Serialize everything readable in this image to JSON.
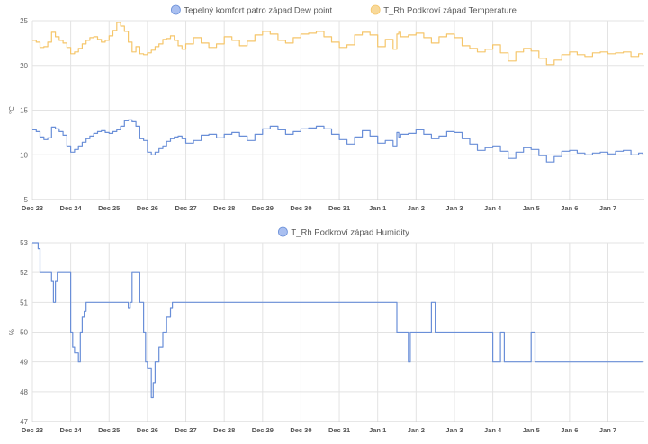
{
  "chart_data": [
    {
      "type": "line",
      "step": true,
      "title": "",
      "xlabel": "",
      "ylabel": "°C",
      "ylim": [
        5,
        25
      ],
      "yticks": [
        "5",
        "10",
        "15",
        "20",
        "25"
      ],
      "xticks": [
        "Dec 23",
        "Dec 24",
        "Dec 25",
        "Dec 26",
        "Dec 27",
        "Dec 28",
        "Dec 29",
        "Dec 30",
        "Dec 31",
        "Jan 1",
        "Jan 2",
        "Jan 3",
        "Jan 4",
        "Jan 5",
        "Jan 6",
        "Jan 7"
      ],
      "grid": true,
      "legend_position": "top-center",
      "series": [
        {
          "name": "Tepelný komfort patro západ Dew point",
          "color": "#6a8fd8",
          "legend_color": "#a9bff0",
          "x": [
            0,
            0.1,
            0.2,
            0.3,
            0.4,
            0.5,
            0.6,
            0.7,
            0.8,
            0.9,
            1.0,
            1.1,
            1.2,
            1.3,
            1.4,
            1.5,
            1.6,
            1.7,
            1.8,
            1.9,
            2.0,
            2.1,
            2.2,
            2.3,
            2.4,
            2.5,
            2.6,
            2.7,
            2.8,
            2.9,
            3.0,
            3.1,
            3.2,
            3.3,
            3.4,
            3.5,
            3.6,
            3.7,
            3.8,
            3.9,
            4.0,
            4.2,
            4.4,
            4.6,
            4.8,
            5.0,
            5.2,
            5.4,
            5.6,
            5.8,
            6.0,
            6.2,
            6.4,
            6.6,
            6.8,
            7.0,
            7.2,
            7.4,
            7.6,
            7.8,
            8.0,
            8.2,
            8.4,
            8.6,
            8.8,
            9.0,
            9.2,
            9.4,
            9.5,
            9.55,
            9.6,
            9.8,
            10.0,
            10.2,
            10.4,
            10.6,
            10.8,
            11.0,
            11.2,
            11.4,
            11.6,
            11.8,
            12.0,
            12.2,
            12.4,
            12.6,
            12.8,
            13.0,
            13.2,
            13.4,
            13.6,
            13.8,
            14.0,
            14.2,
            14.4,
            14.6,
            14.8,
            15.0,
            15.2,
            15.4,
            15.6,
            15.8,
            15.9
          ],
          "y": [
            12.8,
            12.6,
            12.0,
            11.7,
            11.9,
            13.1,
            12.9,
            12.6,
            12.2,
            11.0,
            10.3,
            10.6,
            11.0,
            11.4,
            11.8,
            12.1,
            12.4,
            12.6,
            12.7,
            12.5,
            12.4,
            12.6,
            12.8,
            13.2,
            13.8,
            13.9,
            13.7,
            13.2,
            11.8,
            11.6,
            10.3,
            10.0,
            10.3,
            10.7,
            11.0,
            11.5,
            11.8,
            12.0,
            12.1,
            11.8,
            11.3,
            11.6,
            12.2,
            12.3,
            11.9,
            12.3,
            12.5,
            12.1,
            11.6,
            12.3,
            12.9,
            13.2,
            12.8,
            12.3,
            12.6,
            12.9,
            13.0,
            13.2,
            12.9,
            12.3,
            11.7,
            11.2,
            12.0,
            12.7,
            12.1,
            11.3,
            11.6,
            11.0,
            12.5,
            12.0,
            12.3,
            12.4,
            12.8,
            12.3,
            11.8,
            12.1,
            12.6,
            12.5,
            11.8,
            11.2,
            10.5,
            10.8,
            11.0,
            10.4,
            9.6,
            10.3,
            10.8,
            10.6,
            9.9,
            9.2,
            9.8,
            10.4,
            10.5,
            10.2,
            10.0,
            10.2,
            10.3,
            10.1,
            10.4,
            10.5,
            10.0,
            10.2,
            10.1
          ]
        },
        {
          "name": "T_Rh Podkroví západ Temperature",
          "color": "#f5c66b",
          "legend_color": "#f8d99a",
          "x": [
            0,
            0.1,
            0.2,
            0.3,
            0.4,
            0.5,
            0.6,
            0.7,
            0.8,
            0.9,
            1.0,
            1.1,
            1.2,
            1.3,
            1.4,
            1.5,
            1.6,
            1.7,
            1.8,
            1.9,
            2.0,
            2.1,
            2.2,
            2.3,
            2.4,
            2.5,
            2.6,
            2.7,
            2.8,
            2.9,
            3.0,
            3.1,
            3.2,
            3.3,
            3.4,
            3.5,
            3.6,
            3.7,
            3.8,
            3.9,
            4.0,
            4.2,
            4.4,
            4.6,
            4.8,
            5.0,
            5.2,
            5.4,
            5.6,
            5.8,
            6.0,
            6.2,
            6.4,
            6.6,
            6.8,
            7.0,
            7.2,
            7.4,
            7.6,
            7.8,
            8.0,
            8.2,
            8.4,
            8.6,
            8.8,
            9.0,
            9.2,
            9.4,
            9.5,
            9.55,
            9.6,
            9.8,
            10.0,
            10.2,
            10.4,
            10.6,
            10.8,
            11.0,
            11.2,
            11.4,
            11.6,
            11.8,
            12.0,
            12.2,
            12.4,
            12.6,
            12.8,
            13.0,
            13.2,
            13.4,
            13.6,
            13.8,
            14.0,
            14.2,
            14.4,
            14.6,
            14.8,
            15.0,
            15.2,
            15.4,
            15.6,
            15.8,
            15.9
          ],
          "y": [
            22.8,
            22.6,
            22.0,
            22.1,
            22.6,
            23.7,
            23.2,
            22.8,
            22.5,
            22.0,
            21.3,
            21.5,
            21.9,
            22.4,
            22.8,
            23.1,
            23.2,
            22.9,
            22.6,
            22.8,
            23.3,
            23.9,
            24.8,
            24.4,
            23.8,
            22.6,
            21.5,
            22.1,
            21.3,
            21.2,
            21.4,
            21.7,
            22.1,
            22.4,
            22.9,
            23.0,
            23.3,
            22.8,
            22.2,
            21.8,
            22.4,
            23.1,
            22.5,
            22.0,
            22.4,
            23.2,
            22.8,
            22.2,
            22.7,
            23.4,
            23.8,
            23.5,
            22.8,
            22.5,
            23.1,
            23.5,
            23.6,
            23.8,
            23.2,
            22.6,
            22.0,
            22.3,
            23.4,
            23.7,
            23.4,
            22.1,
            22.9,
            21.8,
            23.5,
            23.7,
            23.2,
            23.4,
            23.6,
            23.1,
            22.5,
            23.2,
            23.5,
            23.1,
            22.2,
            21.9,
            21.5,
            21.8,
            22.3,
            21.4,
            20.5,
            21.5,
            21.9,
            21.6,
            20.8,
            20.1,
            20.6,
            21.2,
            21.5,
            21.2,
            21.0,
            21.4,
            21.5,
            21.3,
            21.4,
            21.5,
            21.0,
            21.3,
            21.2
          ]
        }
      ]
    },
    {
      "type": "line",
      "step": true,
      "title": "",
      "xlabel": "",
      "ylabel": "%",
      "ylim": [
        47,
        53
      ],
      "yticks": [
        "47",
        "48",
        "49",
        "50",
        "51",
        "52",
        "53"
      ],
      "xticks": [
        "Dec 23",
        "Dec 24",
        "Dec 25",
        "Dec 26",
        "Dec 27",
        "Dec 28",
        "Dec 29",
        "Dec 30",
        "Dec 31",
        "Jan 1",
        "Jan 2",
        "Jan 3",
        "Jan 4",
        "Jan 5",
        "Jan 6",
        "Jan 7"
      ],
      "grid": true,
      "legend_position": "top-center",
      "series": [
        {
          "name": "T_Rh Podkroví západ Humidity",
          "color": "#6a8fd8",
          "legend_color": "#a9bff0",
          "x": [
            0,
            0.15,
            0.2,
            0.3,
            0.5,
            0.55,
            0.6,
            0.65,
            0.7,
            1.0,
            1.05,
            1.1,
            1.2,
            1.25,
            1.3,
            1.35,
            1.4,
            1.45,
            1.5,
            1.6,
            1.7,
            1.75,
            2.0,
            2.5,
            2.55,
            2.6,
            2.7,
            2.8,
            2.9,
            2.95,
            3.0,
            3.1,
            3.15,
            3.2,
            3.3,
            3.4,
            3.5,
            3.6,
            3.65,
            3.7,
            3.75,
            3.8,
            3.9,
            3.95,
            4.0,
            4.1,
            4.15,
            4.2,
            9.5,
            9.6,
            9.8,
            9.85,
            9.9,
            10.4,
            10.5,
            10.7,
            11.7,
            12.0,
            12.2,
            12.3,
            12.5,
            13.0,
            13.1,
            13.3,
            14.0,
            15.0,
            15.9
          ],
          "y": [
            53,
            52.8,
            52.0,
            52.0,
            51.7,
            51.0,
            51.7,
            52.0,
            52.0,
            50.0,
            49.5,
            49.3,
            49.0,
            50.0,
            50.5,
            50.7,
            51.0,
            51.0,
            51.0,
            51.0,
            51.0,
            51.0,
            51.0,
            50.8,
            51.0,
            52.0,
            52.0,
            51.0,
            50.0,
            49.0,
            48.8,
            47.8,
            48.3,
            49.0,
            49.5,
            50.0,
            50.5,
            50.8,
            51.0,
            51.0,
            51.0,
            51.0,
            51.0,
            51.0,
            51.0,
            51.0,
            51.0,
            51.0,
            50.0,
            50.0,
            49.0,
            50.0,
            50.0,
            51.0,
            50.0,
            50.0,
            50.0,
            49.0,
            50.0,
            49.0,
            49.0,
            50.0,
            49.0,
            49.0,
            49.0,
            49.0,
            49.0
          ]
        }
      ]
    }
  ]
}
